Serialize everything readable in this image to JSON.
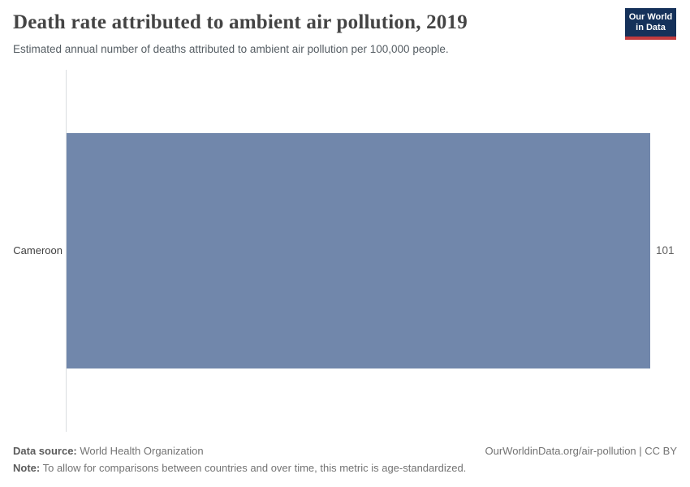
{
  "header": {
    "title": "Death rate attributed to ambient air pollution, 2019",
    "subtitle": "Estimated annual number of deaths attributed to ambient air pollution per 100,000 people.",
    "logo": {
      "line1": "Our World",
      "line2": "in Data",
      "bg_color": "#15315a",
      "accent_color": "#c23b3e"
    }
  },
  "chart_data": {
    "type": "bar",
    "orientation": "horizontal",
    "title": "Death rate attributed to ambient air pollution, 2019",
    "subtitle": "Estimated annual number of deaths attributed to ambient air pollution per 100,000 people.",
    "categories": [
      "Cameroon"
    ],
    "values": [
      101
    ],
    "value_labels": [
      "101"
    ],
    "xlabel": "",
    "ylabel": "",
    "xlim": [
      0,
      101
    ],
    "grid": false,
    "legend": false,
    "bar_color": "#7187ab",
    "axis_line_color": "#dadde0"
  },
  "footer": {
    "data_source_label": "Data source:",
    "data_source_value": " World Health Organization",
    "note_label": "Note:",
    "note_value": " To allow for comparisons between countries and over time, this metric is age-standardized.",
    "link": "OurWorldinData.org/air-pollution | CC BY"
  }
}
